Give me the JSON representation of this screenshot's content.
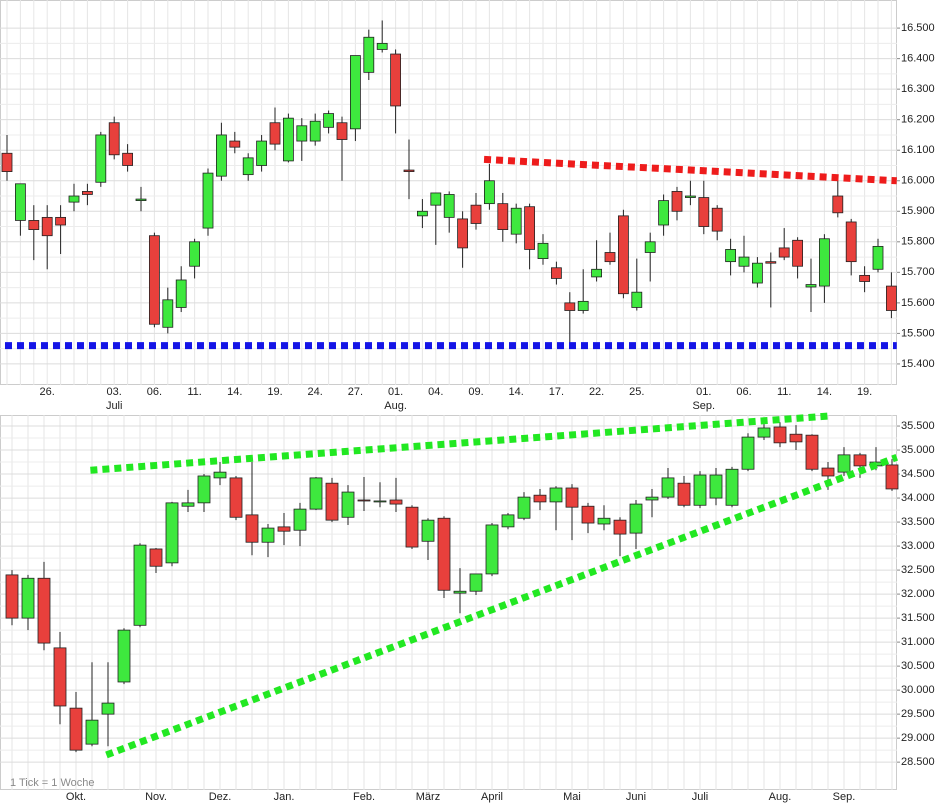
{
  "chart_data": [
    {
      "type": "candlestick",
      "grid": true,
      "up_color": "#3ee83e",
      "down_color": "#e8403c",
      "categories": [
        null,
        null,
        null,
        "26.",
        null,
        null,
        null,
        null,
        "03.",
        null,
        null,
        "06.",
        null,
        null,
        "11.",
        null,
        null,
        "14.",
        null,
        null,
        "19.",
        null,
        null,
        "24.",
        null,
        null,
        "27.",
        null,
        null,
        "01.",
        null,
        null,
        "04.",
        null,
        null,
        "09.",
        null,
        null,
        "14.",
        null,
        null,
        "17.",
        null,
        null,
        "22.",
        null,
        null,
        "25.",
        null,
        null,
        null,
        null,
        "01.",
        null,
        null,
        "06.",
        null,
        null,
        "11.",
        null,
        null,
        "14.",
        null,
        null,
        "19.",
        null,
        null
      ],
      "months": [
        null,
        null,
        null,
        null,
        null,
        null,
        null,
        null,
        "Juli",
        null,
        null,
        null,
        null,
        null,
        null,
        null,
        null,
        null,
        null,
        null,
        null,
        null,
        null,
        null,
        null,
        null,
        null,
        null,
        null,
        "Aug.",
        null,
        null,
        null,
        null,
        null,
        null,
        null,
        null,
        null,
        null,
        null,
        null,
        null,
        null,
        null,
        null,
        null,
        null,
        null,
        null,
        null,
        null,
        "Sep.",
        null,
        null,
        null,
        null,
        null,
        null,
        null,
        null,
        null,
        null,
        null,
        null,
        null,
        null
      ],
      "open": [
        16.09,
        15.87,
        15.87,
        15.88,
        15.88,
        15.93,
        15.965,
        15.995,
        16.19,
        16.09,
        15.935,
        15.82,
        15.52,
        15.585,
        15.72,
        15.845,
        16.015,
        16.13,
        16.02,
        16.05,
        16.19,
        16.065,
        16.13,
        16.13,
        16.175,
        16.19,
        16.17,
        16.355,
        16.43,
        16.415,
        16.035,
        15.885,
        15.92,
        15.88,
        15.875,
        15.92,
        15.925,
        15.925,
        15.825,
        15.915,
        15.745,
        15.715,
        15.6,
        15.575,
        15.685,
        15.765,
        15.885,
        15.585,
        15.765,
        15.855,
        15.965,
        15.945,
        15.945,
        15.91,
        15.735,
        15.72,
        15.665,
        15.735,
        15.78,
        15.805,
        15.652,
        15.655,
        15.95,
        15.865,
        15.69,
        15.71,
        15.655
      ],
      "high": [
        16.15,
        15.99,
        15.92,
        15.92,
        15.92,
        15.99,
        15.99,
        16.16,
        16.21,
        16.12,
        15.98,
        15.83,
        15.65,
        15.72,
        15.81,
        16.04,
        16.19,
        16.16,
        16.09,
        16.15,
        16.24,
        16.22,
        16.205,
        16.22,
        16.23,
        16.21,
        16.41,
        16.495,
        16.525,
        16.43,
        16.135,
        15.94,
        15.96,
        15.965,
        15.9,
        15.96,
        16.055,
        15.96,
        15.925,
        15.925,
        15.825,
        15.735,
        15.635,
        15.71,
        15.805,
        15.83,
        15.905,
        15.745,
        15.83,
        15.955,
        15.98,
        16.0,
        16.0,
        15.92,
        15.81,
        15.82,
        15.75,
        15.765,
        15.845,
        15.815,
        15.745,
        15.825,
        16.0,
        15.875,
        15.72,
        15.81,
        15.7
      ],
      "low": [
        16.0,
        15.82,
        15.74,
        15.71,
        15.76,
        15.9,
        15.92,
        15.98,
        16.07,
        16.03,
        15.9,
        15.52,
        15.5,
        15.57,
        15.68,
        15.82,
        16.0,
        16.09,
        16.0,
        16.03,
        16.1,
        16.06,
        16.065,
        16.115,
        16.155,
        16.0,
        16.13,
        16.33,
        16.42,
        16.155,
        15.94,
        15.845,
        15.79,
        15.83,
        15.715,
        15.84,
        15.905,
        15.8,
        15.795,
        15.71,
        15.725,
        15.66,
        15.47,
        15.565,
        15.67,
        15.725,
        15.615,
        15.575,
        15.67,
        15.82,
        15.87,
        15.92,
        15.825,
        15.805,
        15.69,
        15.7,
        15.65,
        15.585,
        15.74,
        15.68,
        15.57,
        15.6,
        15.88,
        15.69,
        15.635,
        15.7,
        15.55
      ],
      "close": [
        16.03,
        15.99,
        15.84,
        15.82,
        15.855,
        15.95,
        15.955,
        16.15,
        16.085,
        16.05,
        15.94,
        15.53,
        15.61,
        15.675,
        15.8,
        16.025,
        16.15,
        16.11,
        16.075,
        16.13,
        16.12,
        16.205,
        16.18,
        16.195,
        16.22,
        16.135,
        16.41,
        16.47,
        16.45,
        16.245,
        16.03,
        15.9,
        15.96,
        15.955,
        15.78,
        15.86,
        16.0,
        15.84,
        15.91,
        15.775,
        15.795,
        15.68,
        15.575,
        15.605,
        15.71,
        15.735,
        15.63,
        15.635,
        15.8,
        15.935,
        15.9,
        15.95,
        15.85,
        15.835,
        15.775,
        15.75,
        15.73,
        15.73,
        15.75,
        15.72,
        15.66,
        15.81,
        15.895,
        15.735,
        15.67,
        15.785,
        15.575
      ],
      "ylim": [
        15.331,
        16.592
      ],
      "yticks": [
        {
          "value": 15.4,
          "label": "15.400"
        },
        {
          "value": 15.5,
          "label": "15.500"
        },
        {
          "value": 15.6,
          "label": "15.600"
        },
        {
          "value": 15.7,
          "label": "15.700"
        },
        {
          "value": 15.8,
          "label": "15.800"
        },
        {
          "value": 15.9,
          "label": "15.900"
        },
        {
          "value": 16.0,
          "label": "16.000"
        },
        {
          "value": 16.1,
          "label": "16.100"
        },
        {
          "value": 16.2,
          "label": "16.200"
        },
        {
          "value": 16.3,
          "label": "16.300"
        },
        {
          "value": 16.4,
          "label": "16.400"
        },
        {
          "value": 16.5,
          "label": "16.500"
        }
      ],
      "trendlines": [
        {
          "color": "#ee1c1c",
          "x": [
            35.6,
            66.4
          ],
          "values": [
            16.07,
            16.0
          ]
        },
        {
          "color": "#1414e6",
          "x": [
            -0.15,
            66.4
          ],
          "values": [
            15.46,
            15.46
          ]
        }
      ]
    },
    {
      "type": "candlestick",
      "grid": true,
      "up_color": "#3ee83e",
      "down_color": "#e8403c",
      "categories": [
        null,
        null,
        null,
        null,
        "Okt.",
        null,
        null,
        null,
        null,
        "Nov.",
        null,
        null,
        null,
        "Dez.",
        null,
        null,
        null,
        "Jan.",
        null,
        null,
        null,
        null,
        "Feb.",
        null,
        null,
        null,
        "März",
        null,
        null,
        null,
        "April",
        null,
        null,
        null,
        null,
        "Mai",
        null,
        null,
        null,
        "Juni",
        null,
        null,
        null,
        "Juli",
        null,
        null,
        null,
        null,
        "Aug.",
        null,
        null,
        null,
        "Sep.",
        null,
        null,
        null
      ],
      "open": [
        32.4,
        31.5,
        32.33,
        30.88,
        29.625,
        28.875,
        29.5,
        30.17,
        31.35,
        32.94,
        32.65,
        33.83,
        33.9,
        34.42,
        34.42,
        33.65,
        33.08,
        33.4,
        33.33,
        33.77,
        34.31,
        33.6,
        33.96,
        33.93,
        33.96,
        33.81,
        33.1,
        33.58,
        32.02,
        32.06,
        32.42,
        33.4,
        33.58,
        34.06,
        33.92,
        34.21,
        33.83,
        33.46,
        33.54,
        33.27,
        33.96,
        34.02,
        34.31,
        33.85,
        34.0,
        33.85,
        34.6,
        35.27,
        35.48,
        35.33,
        35.31,
        34.625,
        34.54,
        34.9,
        34.67,
        34.69
      ],
      "high": [
        32.5,
        32.4,
        32.67,
        31.21,
        29.96,
        30.58,
        30.58,
        31.29,
        33.06,
        32.96,
        33.92,
        34.17,
        34.5,
        34.75,
        34.46,
        34.75,
        33.46,
        33.69,
        33.9,
        34.44,
        34.42,
        34.27,
        34.44,
        34.33,
        34.42,
        33.85,
        33.58,
        33.62,
        32.54,
        32.42,
        33.48,
        33.69,
        34.125,
        34.19,
        34.25,
        34.29,
        33.9,
        33.85,
        33.6,
        33.96,
        34.19,
        34.625,
        34.46,
        34.56,
        34.625,
        34.65,
        35.35,
        35.58,
        35.58,
        35.52,
        35.33,
        34.75,
        35.06,
        34.94,
        35.06,
        34.81
      ],
      "low": [
        31.35,
        31.25,
        30.83,
        29.29,
        28.71,
        28.83,
        28.83,
        30.125,
        31.31,
        32.44,
        32.58,
        33.71,
        33.71,
        34.27,
        33.54,
        32.81,
        32.77,
        33.02,
        33.0,
        33.75,
        33.5,
        33.44,
        33.73,
        33.81,
        33.71,
        32.94,
        32.71,
        31.92,
        31.6,
        31.98,
        32.375,
        33.35,
        33.54,
        33.75,
        33.33,
        33.125,
        33.27,
        33.33,
        32.79,
        32.94,
        33.6,
        33.98,
        33.81,
        33.79,
        33.85,
        33.81,
        34.56,
        35.21,
        35.06,
        35.0,
        34.56,
        34.17,
        34.46,
        34.42,
        34.58,
        34.15
      ],
      "close": [
        31.5,
        32.33,
        30.98,
        29.67,
        28.75,
        29.375,
        29.73,
        31.25,
        33.02,
        32.58,
        33.9,
        33.9,
        34.46,
        34.54,
        33.6,
        33.08,
        33.375,
        33.31,
        33.77,
        34.42,
        33.54,
        34.125,
        33.95,
        33.94,
        33.875,
        32.98,
        33.54,
        32.08,
        32.06,
        32.42,
        33.44,
        33.65,
        34.02,
        33.92,
        34.21,
        33.81,
        33.48,
        33.58,
        33.25,
        33.875,
        34.02,
        34.42,
        33.85,
        34.48,
        34.48,
        34.6,
        35.27,
        35.46,
        35.15,
        35.17,
        34.6,
        34.46,
        34.9,
        34.67,
        34.75,
        34.19
      ],
      "ylim": [
        27.92,
        35.73
      ],
      "yticks": [
        {
          "value": 28.5,
          "label": "28.500"
        },
        {
          "value": 29.0,
          "label": "29.000"
        },
        {
          "value": 29.5,
          "label": "29.500"
        },
        {
          "value": 30.0,
          "label": "30.000"
        },
        {
          "value": 30.5,
          "label": "30.500"
        },
        {
          "value": 31.0,
          "label": "31.000"
        },
        {
          "value": 31.5,
          "label": "31.500"
        },
        {
          "value": 32.0,
          "label": "32.000"
        },
        {
          "value": 32.5,
          "label": "32.500"
        },
        {
          "value": 33.0,
          "label": "33.000"
        },
        {
          "value": 33.5,
          "label": "33.500"
        },
        {
          "value": 34.0,
          "label": "34.000"
        },
        {
          "value": 34.5,
          "label": "34.500"
        },
        {
          "value": 35.0,
          "label": "35.000"
        },
        {
          "value": 35.5,
          "label": "35.500"
        }
      ],
      "trendlines": [
        {
          "color": "#22e822",
          "x": [
            4.9,
            51.1
          ],
          "values": [
            34.58,
            35.71
          ]
        },
        {
          "color": "#22e822",
          "x": [
            5.9,
            55.3
          ],
          "values": [
            28.65,
            34.85
          ]
        }
      ],
      "note": "1 Tick = 1 Woche"
    }
  ]
}
